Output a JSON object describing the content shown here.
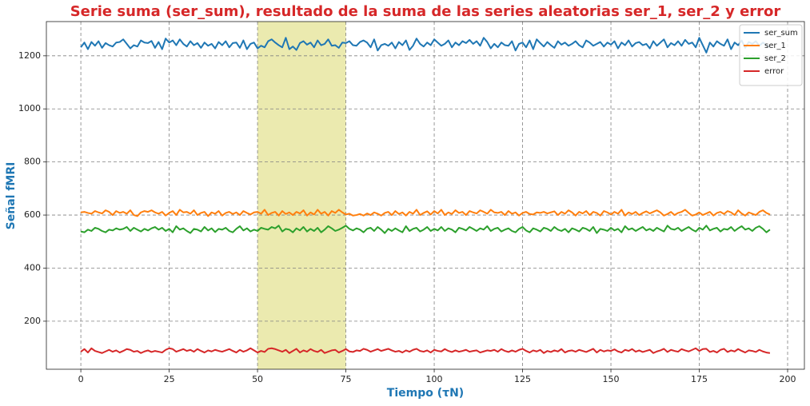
{
  "chart_data": {
    "type": "line",
    "title": "Serie suma (ser_sum), resultado de la suma de las series aleatorias ser_1, ser_2 y error",
    "xlabel": "Tiempo (τN)",
    "ylabel": "Señal fMRI",
    "title_color": "#d62728",
    "label_color": "#1f77b4",
    "grid": true,
    "legend": "upper right",
    "highlight_span": [
      50,
      75
    ],
    "span_color": "#ebeaaf",
    "xlim": [
      -9.75,
      204.75
    ],
    "xticks": [
      0,
      25,
      50,
      75,
      100,
      125,
      150,
      175,
      200
    ],
    "ylim": [
      19,
      1329
    ],
    "yticks": [
      200,
      400,
      600,
      800,
      1000,
      1200
    ],
    "x": [
      0,
      1,
      2,
      3,
      4,
      5,
      6,
      7,
      8,
      9,
      10,
      11,
      12,
      13,
      14,
      15,
      16,
      17,
      18,
      19,
      20,
      21,
      22,
      23,
      24,
      25,
      26,
      27,
      28,
      29,
      30,
      31,
      32,
      33,
      34,
      35,
      36,
      37,
      38,
      39,
      40,
      41,
      42,
      43,
      44,
      45,
      46,
      47,
      48,
      49,
      50,
      51,
      52,
      53,
      54,
      55,
      56,
      57,
      58,
      59,
      60,
      61,
      62,
      63,
      64,
      65,
      66,
      67,
      68,
      69,
      70,
      71,
      72,
      73,
      74,
      75,
      76,
      77,
      78,
      79,
      80,
      81,
      82,
      83,
      84,
      85,
      86,
      87,
      88,
      89,
      90,
      91,
      92,
      93,
      94,
      95,
      96,
      97,
      98,
      99,
      100,
      101,
      102,
      103,
      104,
      105,
      106,
      107,
      108,
      109,
      110,
      111,
      112,
      113,
      114,
      115,
      116,
      117,
      118,
      119,
      120,
      121,
      122,
      123,
      124,
      125,
      126,
      127,
      128,
      129,
      130,
      131,
      132,
      133,
      134,
      135,
      136,
      137,
      138,
      139,
      140,
      141,
      142,
      143,
      144,
      145,
      146,
      147,
      148,
      149,
      150,
      151,
      152,
      153,
      154,
      155,
      156,
      157,
      158,
      159,
      160,
      161,
      162,
      163,
      164,
      165,
      166,
      167,
      168,
      169,
      170,
      171,
      172,
      173,
      174,
      175,
      176,
      177,
      178,
      179,
      180,
      181,
      182,
      183,
      184,
      185,
      186,
      187,
      188,
      189,
      190,
      191,
      192,
      193,
      194,
      195
    ],
    "series": [
      {
        "name": "ser_sum",
        "color": "#1f77b4",
        "values": [
          1232,
          1250,
          1225,
          1252,
          1238,
          1255,
          1230,
          1248,
          1240,
          1235,
          1250,
          1252,
          1262,
          1245,
          1228,
          1240,
          1235,
          1258,
          1250,
          1248,
          1256,
          1230,
          1252,
          1225,
          1265,
          1250,
          1258,
          1240,
          1262,
          1245,
          1235,
          1255,
          1240,
          1248,
          1230,
          1250,
          1238,
          1245,
          1228,
          1252,
          1240,
          1255,
          1232,
          1248,
          1250,
          1230,
          1258,
          1225,
          1245,
          1250,
          1228,
          1238,
          1232,
          1255,
          1262,
          1250,
          1240,
          1232,
          1268,
          1225,
          1235,
          1222,
          1248,
          1255,
          1242,
          1250,
          1232,
          1258,
          1240,
          1245,
          1262,
          1238,
          1240,
          1230,
          1250,
          1248,
          1255,
          1240,
          1238,
          1252,
          1258,
          1250,
          1232,
          1262,
          1220,
          1240,
          1245,
          1238,
          1250,
          1228,
          1252,
          1240,
          1258,
          1222,
          1238,
          1265,
          1245,
          1235,
          1250,
          1240,
          1262,
          1250,
          1238,
          1245,
          1258,
          1232,
          1250,
          1240,
          1255,
          1248,
          1260,
          1245,
          1255,
          1238,
          1268,
          1252,
          1228,
          1245,
          1232,
          1250,
          1240,
          1238,
          1255,
          1220,
          1245,
          1250,
          1232,
          1258,
          1225,
          1262,
          1248,
          1235,
          1252,
          1240,
          1230,
          1255,
          1242,
          1250,
          1238,
          1245,
          1255,
          1240,
          1232,
          1258,
          1250,
          1238,
          1245,
          1252,
          1235,
          1250,
          1242,
          1255,
          1228,
          1250,
          1240,
          1258,
          1235,
          1248,
          1252,
          1240,
          1245,
          1228,
          1255,
          1238,
          1250,
          1262,
          1232,
          1248,
          1240,
          1255,
          1238,
          1260,
          1245,
          1250,
          1232,
          1268,
          1240,
          1212,
          1250,
          1235,
          1255,
          1245,
          1238,
          1262,
          1225,
          1250,
          1240,
          1258,
          1230,
          1252,
          1245,
          1255,
          1238,
          1250,
          1240,
          1232
        ]
      },
      {
        "name": "ser_1",
        "color": "#ff7f0e",
        "values": [
          610,
          612,
          608,
          605,
          615,
          610,
          606,
          618,
          612,
          600,
          615,
          608,
          612,
          605,
          618,
          600,
          596,
          610,
          615,
          612,
          618,
          610,
          605,
          612,
          598,
          608,
          615,
          600,
          620,
          610,
          612,
          605,
          618,
          600,
          608,
          612,
          596,
          610,
          605,
          615,
          598,
          608,
          612,
          604,
          610,
          600,
          615,
          608,
          602,
          610,
          612,
          605,
          620,
          600,
          608,
          612,
          598,
          615,
          604,
          610,
          600,
          612,
          606,
          618,
          598,
          610,
          602,
          620,
          605,
          612,
          598,
          615,
          608,
          620,
          610,
          602,
          605,
          598,
          600,
          604,
          598,
          606,
          600,
          610,
          605,
          598,
          608,
          612,
          600,
          615,
          604,
          610,
          598,
          612,
          605,
          620,
          600,
          608,
          614,
          602,
          615,
          606,
          620,
          600,
          610,
          604,
          618,
          608,
          612,
          600,
          615,
          610,
          606,
          618,
          612,
          605,
          620,
          610,
          608,
          612,
          600,
          615,
          605,
          610,
          598,
          608,
          612,
          604,
          602,
          610,
          608,
          612,
          606,
          610,
          614,
          600,
          612,
          605,
          618,
          610,
          598,
          612,
          606,
          615,
          600,
          612,
          608,
          598,
          615,
          610,
          602,
          612,
          605,
          620,
          598,
          610,
          604,
          612,
          600,
          608,
          614,
          606,
          612,
          618,
          610,
          598,
          604,
          612,
          600,
          608,
          612,
          620,
          608,
          598,
          602,
          610,
          600,
          606,
          612,
          598,
          608,
          612,
          604,
          615,
          610,
          600,
          618,
          606,
          598,
          610,
          605,
          600,
          612,
          618,
          608,
          602
        ]
      },
      {
        "name": "ser_2",
        "color": "#2ca02c",
        "values": [
          538,
          535,
          545,
          540,
          552,
          548,
          540,
          535,
          545,
          542,
          550,
          545,
          548,
          555,
          540,
          552,
          545,
          538,
          548,
          542,
          550,
          555,
          545,
          552,
          540,
          548,
          535,
          558,
          545,
          550,
          540,
          532,
          548,
          545,
          538,
          555,
          542,
          550,
          536,
          548,
          545,
          552,
          540,
          535,
          548,
          558,
          542,
          550,
          538,
          545,
          540,
          552,
          548,
          545,
          555,
          550,
          560,
          538,
          548,
          545,
          535,
          550,
          542,
          555,
          538,
          548,
          540,
          552,
          535,
          545,
          558,
          550,
          540,
          545,
          552,
          560,
          548,
          542,
          550,
          545,
          535,
          548,
          552,
          540,
          555,
          545,
          532,
          548,
          540,
          550,
          542,
          535,
          558,
          540,
          548,
          552,
          538,
          545,
          555,
          540,
          548,
          542,
          555,
          540,
          550,
          545,
          535,
          552,
          548,
          542,
          555,
          548,
          540,
          550,
          545,
          558,
          540,
          548,
          552,
          538,
          545,
          550,
          540,
          535,
          548,
          555,
          542,
          535,
          550,
          545,
          538,
          552,
          548,
          540,
          555,
          545,
          540,
          548,
          535,
          550,
          545,
          538,
          552,
          548,
          540,
          555,
          532,
          548,
          545,
          540,
          552,
          542,
          548,
          535,
          558,
          545,
          550,
          540,
          548,
          555,
          542,
          548,
          540,
          552,
          545,
          538,
          560,
          548,
          545,
          552,
          540,
          548,
          555,
          545,
          538,
          552,
          545,
          560,
          542,
          548,
          552,
          538,
          548,
          545,
          555,
          540,
          550,
          558,
          545,
          550,
          540,
          552,
          558,
          548,
          535,
          545
        ]
      },
      {
        "name": "error",
        "color": "#d62728",
        "values": [
          85,
          95,
          82,
          98,
          88,
          84,
          80,
          86,
          92,
          85,
          90,
          82,
          88,
          95,
          92,
          85,
          88,
          80,
          86,
          90,
          84,
          88,
          85,
          82,
          92,
          98,
          95,
          85,
          90,
          95,
          88,
          92,
          85,
          95,
          88,
          82,
          90,
          86,
          92,
          88,
          85,
          90,
          95,
          88,
          82,
          92,
          85,
          90,
          98,
          90,
          82,
          88,
          84,
          96,
          98,
          95,
          90,
          85,
          92,
          80,
          88,
          96,
          82,
          90,
          85,
          95,
          88,
          84,
          92,
          80,
          85,
          90,
          92,
          82,
          88,
          95,
          86,
          84,
          90,
          88,
          96,
          92,
          85,
          90,
          95,
          88,
          92,
          96,
          90,
          85,
          88,
          82,
          90,
          85,
          92,
          96,
          88,
          85,
          90,
          82,
          92,
          88,
          86,
          95,
          88,
          84,
          90,
          85,
          88,
          92,
          85,
          88,
          90,
          82,
          86,
          90,
          88,
          92,
          85,
          95,
          88,
          84,
          90,
          85,
          92,
          96,
          88,
          82,
          90,
          86,
          92,
          80,
          88,
          84,
          90,
          86,
          95,
          82,
          88,
          90,
          85,
          92,
          88,
          84,
          90,
          96,
          82,
          92,
          86,
          90,
          88,
          94,
          86,
          82,
          92,
          88,
          95,
          85,
          90,
          84,
          88,
          92,
          80,
          86,
          90,
          96,
          84,
          92,
          88,
          85,
          95,
          90,
          86,
          92,
          98,
          88,
          95,
          96,
          84,
          88,
          82,
          92,
          96,
          84,
          90,
          86,
          95,
          88,
          82,
          90,
          88,
          84,
          92,
          86,
          82,
          80
        ]
      }
    ]
  }
}
